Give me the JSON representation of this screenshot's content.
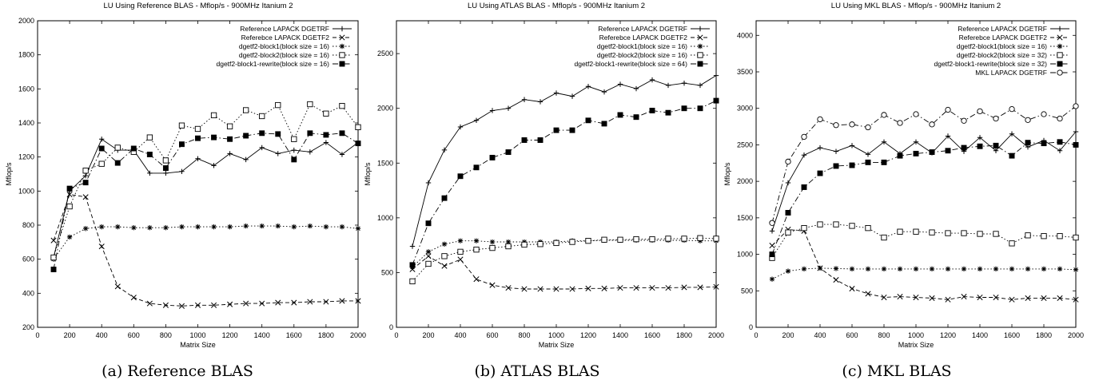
{
  "chart_data": [
    {
      "type": "line",
      "title": "LU Using Reference BLAS - Mflop/s - 900MHz Itanium 2",
      "caption": "(a) Reference BLAS",
      "xlabel": "Matrix Size",
      "ylabel": "Mflop/s",
      "xlim": [
        0,
        2000
      ],
      "ylim": [
        200,
        2000
      ],
      "xticks": [
        0,
        200,
        400,
        600,
        800,
        1000,
        1200,
        1400,
        1600,
        1800,
        2000
      ],
      "yticks": [
        200,
        400,
        600,
        800,
        1000,
        1200,
        1400,
        1600,
        1800,
        2000
      ],
      "grid": false,
      "legend_position": "top-right",
      "x": [
        100,
        200,
        300,
        400,
        500,
        600,
        700,
        800,
        900,
        1000,
        1100,
        1200,
        1300,
        1400,
        1500,
        1600,
        1700,
        1800,
        1900,
        2000
      ],
      "series": [
        {
          "name": "Reference LAPACK DGETRF",
          "marker": "plus",
          "dash": "solid",
          "values": [
            610,
            1000,
            1090,
            1305,
            1240,
            1240,
            1105,
            1105,
            1115,
            1190,
            1150,
            1220,
            1185,
            1255,
            1220,
            1240,
            1230,
            1285,
            1215,
            1285
          ]
        },
        {
          "name": "Referebce LAPACK DGETF2",
          "marker": "cross",
          "dash": "dashed",
          "values": [
            710,
            980,
            965,
            675,
            440,
            375,
            340,
            330,
            325,
            330,
            330,
            335,
            340,
            340,
            345,
            345,
            350,
            350,
            355,
            355
          ]
        },
        {
          "name": "dgetf2-block1(block size = 16)",
          "marker": "star",
          "dash": "dotted",
          "values": [
            600,
            730,
            780,
            790,
            790,
            785,
            785,
            785,
            790,
            790,
            790,
            790,
            795,
            795,
            795,
            790,
            795,
            790,
            790,
            780
          ]
        },
        {
          "name": "dgetf2-block2(block size = 16)",
          "marker": "open-square",
          "dash": "dotted",
          "values": [
            610,
            910,
            1120,
            1160,
            1255,
            1230,
            1315,
            1180,
            1385,
            1365,
            1445,
            1380,
            1475,
            1440,
            1505,
            1305,
            1510,
            1455,
            1500,
            1375
          ]
        },
        {
          "name": "dgetf2-block1-rewrite(block size = 16)",
          "marker": "filled-square",
          "dash": "dashdot",
          "values": [
            540,
            1015,
            1050,
            1250,
            1165,
            1250,
            1215,
            1135,
            1275,
            1310,
            1315,
            1305,
            1325,
            1340,
            1335,
            1185,
            1340,
            1330,
            1340,
            1280
          ]
        }
      ]
    },
    {
      "type": "line",
      "title": "LU Using ATLAS BLAS - Mflop/s - 900MHz Itanium 2",
      "caption": "(b) ATLAS BLAS",
      "xlabel": "Matrix Size",
      "ylabel": "Mflop/s",
      "xlim": [
        0,
        2000
      ],
      "ylim": [
        0,
        2800
      ],
      "xticks": [
        0,
        200,
        400,
        600,
        800,
        1000,
        1200,
        1400,
        1600,
        1800,
        2000
      ],
      "yticks": [
        0,
        500,
        1000,
        1500,
        2000,
        2500
      ],
      "grid": false,
      "legend_position": "top-right",
      "x": [
        100,
        200,
        300,
        400,
        500,
        600,
        700,
        800,
        900,
        1000,
        1100,
        1200,
        1300,
        1400,
        1500,
        1600,
        1700,
        1800,
        1900,
        2000
      ],
      "series": [
        {
          "name": "Reference LAPACK DGETRF",
          "marker": "plus",
          "dash": "solid",
          "values": [
            740,
            1320,
            1620,
            1830,
            1890,
            1980,
            2000,
            2080,
            2060,
            2140,
            2110,
            2200,
            2150,
            2220,
            2180,
            2260,
            2210,
            2230,
            2210,
            2300
          ]
        },
        {
          "name": "Referebce LAPACK DGETF2",
          "marker": "cross",
          "dash": "dashed",
          "values": [
            530,
            650,
            560,
            620,
            440,
            385,
            360,
            350,
            350,
            350,
            350,
            355,
            355,
            360,
            360,
            360,
            360,
            365,
            365,
            370
          ]
        },
        {
          "name": "dgetf2-block1(block size = 16)",
          "marker": "star",
          "dash": "dotted",
          "values": [
            550,
            690,
            760,
            790,
            790,
            780,
            780,
            780,
            780,
            780,
            790,
            790,
            795,
            795,
            795,
            795,
            795,
            795,
            790,
            790
          ]
        },
        {
          "name": "dgetf2-block2(block size = 16)",
          "marker": "open-square",
          "dash": "dotted",
          "values": [
            420,
            580,
            650,
            690,
            710,
            725,
            740,
            755,
            760,
            770,
            780,
            790,
            800,
            800,
            805,
            805,
            810,
            810,
            815,
            810
          ]
        },
        {
          "name": "dgetf2-block1-rewrite(block size = 64)",
          "marker": "filled-square",
          "dash": "dashdot",
          "values": [
            570,
            950,
            1180,
            1380,
            1460,
            1550,
            1600,
            1710,
            1710,
            1800,
            1800,
            1890,
            1860,
            1940,
            1920,
            1980,
            1960,
            2000,
            2000,
            2070
          ]
        }
      ]
    },
    {
      "type": "line",
      "title": "LU Using MKL BLAS - Mflop/s - 900MHz Itanium 2",
      "caption": "(c) MKL BLAS",
      "xlabel": "Matrix Size",
      "ylabel": "Mflop/s",
      "xlim": [
        0,
        2000
      ],
      "ylim": [
        0,
        4200
      ],
      "xticks": [
        0,
        200,
        400,
        600,
        800,
        1000,
        1200,
        1400,
        1600,
        1800,
        2000
      ],
      "yticks": [
        0,
        500,
        1000,
        1500,
        2000,
        2500,
        3000,
        3500,
        4000
      ],
      "grid": false,
      "legend_position": "top-right",
      "x": [
        100,
        200,
        300,
        400,
        500,
        600,
        700,
        800,
        900,
        1000,
        1100,
        1200,
        1300,
        1400,
        1500,
        1600,
        1700,
        1800,
        1900,
        2000
      ],
      "series": [
        {
          "name": "Reference LAPACK DGETRF",
          "marker": "plus",
          "dash": "solid",
          "values": [
            1320,
            1980,
            2360,
            2460,
            2410,
            2490,
            2370,
            2540,
            2380,
            2540,
            2390,
            2620,
            2410,
            2600,
            2420,
            2650,
            2470,
            2560,
            2420,
            2680
          ]
        },
        {
          "name": "Referebce LAPACK DGETF2",
          "marker": "cross",
          "dash": "dashed",
          "values": [
            1120,
            1340,
            1320,
            810,
            650,
            530,
            460,
            410,
            420,
            410,
            400,
            380,
            420,
            410,
            410,
            380,
            400,
            400,
            400,
            380
          ]
        },
        {
          "name": "dgetf2-block1(block size = 16)",
          "marker": "star",
          "dash": "dotted",
          "values": [
            660,
            770,
            800,
            810,
            805,
            800,
            800,
            800,
            800,
            800,
            800,
            800,
            800,
            800,
            800,
            800,
            800,
            800,
            800,
            790
          ]
        },
        {
          "name": "dgetf2-block2(block size = 32)",
          "marker": "open-square",
          "dash": "dotted",
          "values": [
            950,
            1300,
            1360,
            1410,
            1410,
            1390,
            1360,
            1230,
            1310,
            1310,
            1300,
            1290,
            1290,
            1280,
            1280,
            1150,
            1260,
            1250,
            1250,
            1230
          ]
        },
        {
          "name": "dgetf2-block1-rewrite(block size = 32)",
          "marker": "filled-square",
          "dash": "dashdot",
          "values": [
            1000,
            1570,
            1920,
            2110,
            2210,
            2220,
            2260,
            2260,
            2350,
            2380,
            2400,
            2420,
            2460,
            2480,
            2490,
            2350,
            2530,
            2520,
            2540,
            2500
          ]
        },
        {
          "name": "MKL LAPACK DGETRF",
          "marker": "open-circle",
          "dash": "dashdot",
          "values": [
            1430,
            2270,
            2610,
            2850,
            2770,
            2780,
            2740,
            2910,
            2800,
            2920,
            2780,
            2980,
            2830,
            2960,
            2860,
            2990,
            2840,
            2920,
            2860,
            3030
          ]
        }
      ]
    }
  ]
}
